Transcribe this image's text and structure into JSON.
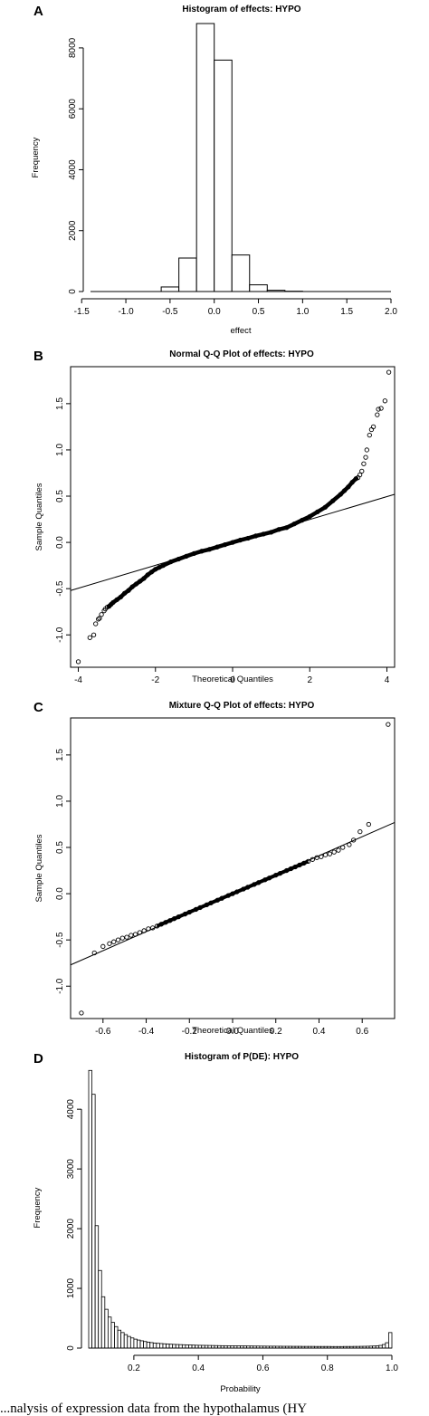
{
  "panels": [
    {
      "letter": "A",
      "title": "Histogram of effects: HYPO"
    },
    {
      "letter": "B",
      "title": "Normal Q-Q Plot of effects: HYPO"
    },
    {
      "letter": "C",
      "title": "Mixture Q-Q Plot of effects: HYPO"
    },
    {
      "letter": "D",
      "title": "Histogram of P(DE): HYPO"
    }
  ],
  "caption": "...nalysis of expression data from the hypothalamus (HY",
  "chart_data": [
    {
      "type": "bar",
      "title": "Histogram of effects: HYPO",
      "xlabel": "effect",
      "ylabel": "Frequency",
      "bins": [
        [
          -0.6,
          -0.4
        ],
        [
          -0.4,
          -0.2
        ],
        [
          -0.2,
          0.0
        ],
        [
          0.0,
          0.2
        ],
        [
          0.2,
          0.4
        ],
        [
          0.4,
          0.6
        ],
        [
          0.6,
          0.8
        ],
        [
          0.8,
          1.0
        ]
      ],
      "values": [
        150,
        1100,
        8800,
        7600,
        1200,
        220,
        40,
        10
      ],
      "xlim": [
        -1.4,
        2.0
      ],
      "ylim": [
        0,
        8800
      ],
      "xticks": [
        "-1.5",
        "-1.0",
        "-0.5",
        "0.0",
        "0.5",
        "1.0",
        "1.5",
        "2.0"
      ],
      "yticks": [
        "0",
        "2000",
        "4000",
        "6000",
        "8000"
      ]
    },
    {
      "type": "scatter",
      "title": "Normal Q-Q Plot of effects: HYPO",
      "xlabel": "Theoretical Quantiles",
      "ylabel": "Sample Quantiles",
      "xlim": [
        -4.2,
        4.2
      ],
      "ylim": [
        -1.35,
        1.9
      ],
      "xticks": [
        "-4",
        "-2",
        "0",
        "2",
        "4"
      ],
      "yticks": [
        "-1.0",
        "-0.5",
        "0.0",
        "0.5",
        "1.0",
        "1.5"
      ],
      "reference_line": [
        [
          -4.2,
          -0.52
        ],
        [
          4.2,
          0.52
        ]
      ],
      "points": [
        [
          -4.0,
          -1.29
        ],
        [
          -3.7,
          -1.03
        ],
        [
          -3.6,
          -1.0
        ],
        [
          -3.55,
          -0.88
        ],
        [
          -3.48,
          -0.83
        ],
        [
          -3.45,
          -0.82
        ],
        [
          -3.4,
          -0.78
        ],
        [
          -3.33,
          -0.74
        ],
        [
          -3.3,
          -0.72
        ],
        [
          -3.25,
          -0.7
        ],
        [
          -3.2,
          -0.69
        ],
        [
          -3.15,
          -0.67
        ],
        [
          -3.1,
          -0.65
        ],
        [
          -3.0,
          -0.62
        ],
        [
          -2.9,
          -0.59
        ],
        [
          -2.8,
          -0.55
        ],
        [
          -2.7,
          -0.52
        ],
        [
          -2.6,
          -0.48
        ],
        [
          -2.5,
          -0.45
        ],
        [
          -2.4,
          -0.42
        ],
        [
          -2.3,
          -0.39
        ],
        [
          -2.2,
          -0.35
        ],
        [
          -2.1,
          -0.32
        ],
        [
          -2.0,
          -0.29
        ],
        [
          -1.9,
          -0.27
        ],
        [
          -1.8,
          -0.25
        ],
        [
          -1.6,
          -0.21
        ],
        [
          -1.4,
          -0.18
        ],
        [
          -1.2,
          -0.15
        ],
        [
          -1.0,
          -0.12
        ],
        [
          -0.8,
          -0.095
        ],
        [
          -0.6,
          -0.075
        ],
        [
          -0.4,
          -0.05
        ],
        [
          -0.2,
          -0.025
        ],
        [
          0.0,
          0.0
        ],
        [
          0.2,
          0.025
        ],
        [
          0.4,
          0.045
        ],
        [
          0.6,
          0.07
        ],
        [
          0.8,
          0.09
        ],
        [
          1.0,
          0.11
        ],
        [
          1.2,
          0.14
        ],
        [
          1.4,
          0.16
        ],
        [
          1.6,
          0.2
        ],
        [
          1.8,
          0.24
        ],
        [
          2.0,
          0.28
        ],
        [
          2.2,
          0.33
        ],
        [
          2.4,
          0.38
        ],
        [
          2.6,
          0.45
        ],
        [
          2.8,
          0.52
        ],
        [
          2.9,
          0.56
        ],
        [
          3.0,
          0.6
        ],
        [
          3.1,
          0.65
        ],
        [
          3.2,
          0.69
        ],
        [
          3.25,
          0.7
        ],
        [
          3.3,
          0.73
        ],
        [
          3.35,
          0.77
        ],
        [
          3.4,
          0.85
        ],
        [
          3.45,
          0.92
        ],
        [
          3.48,
          1.0
        ],
        [
          3.55,
          1.16
        ],
        [
          3.6,
          1.22
        ],
        [
          3.65,
          1.25
        ],
        [
          3.75,
          1.38
        ],
        [
          3.78,
          1.44
        ],
        [
          3.85,
          1.45
        ],
        [
          3.95,
          1.53
        ],
        [
          4.05,
          1.84
        ]
      ]
    },
    {
      "type": "scatter",
      "title": "Mixture Q-Q Plot of effects: HYPO",
      "xlabel": "Theoretical Quantiles",
      "ylabel": "Sample Quantiles",
      "xlim": [
        -0.75,
        0.75
      ],
      "ylim": [
        -1.35,
        1.9
      ],
      "xticks": [
        "-0.6",
        "-0.4",
        "-0.2",
        "0.0",
        "0.2",
        "0.4",
        "0.6"
      ],
      "yticks": [
        "-1.0",
        "-0.5",
        "0.0",
        "0.5",
        "1.0",
        "1.5"
      ],
      "reference_line": [
        [
          -0.75,
          -0.77
        ],
        [
          0.75,
          0.77
        ]
      ],
      "points": [
        [
          -0.7,
          -1.29
        ],
        [
          -0.64,
          -0.64
        ],
        [
          -0.6,
          -0.57
        ],
        [
          -0.57,
          -0.54
        ],
        [
          -0.55,
          -0.52
        ],
        [
          -0.53,
          -0.5
        ],
        [
          -0.51,
          -0.48
        ],
        [
          -0.49,
          -0.47
        ],
        [
          -0.47,
          -0.45
        ],
        [
          -0.45,
          -0.44
        ],
        [
          -0.43,
          -0.42
        ],
        [
          -0.41,
          -0.4
        ],
        [
          -0.39,
          -0.38
        ],
        [
          -0.37,
          -0.37
        ],
        [
          -0.35,
          -0.35
        ],
        [
          -0.33,
          -0.33
        ],
        [
          -0.31,
          -0.31
        ],
        [
          -0.29,
          -0.29
        ],
        [
          -0.27,
          -0.27
        ],
        [
          -0.25,
          -0.25
        ],
        [
          -0.22,
          -0.22
        ],
        [
          -0.2,
          -0.2
        ],
        [
          -0.17,
          -0.17
        ],
        [
          -0.15,
          -0.15
        ],
        [
          -0.12,
          -0.12
        ],
        [
          -0.1,
          -0.1
        ],
        [
          -0.07,
          -0.07
        ],
        [
          -0.05,
          -0.05
        ],
        [
          -0.02,
          -0.02
        ],
        [
          0.0,
          0.0
        ],
        [
          0.02,
          0.02
        ],
        [
          0.05,
          0.05
        ],
        [
          0.07,
          0.07
        ],
        [
          0.1,
          0.1
        ],
        [
          0.12,
          0.12
        ],
        [
          0.15,
          0.15
        ],
        [
          0.17,
          0.17
        ],
        [
          0.2,
          0.2
        ],
        [
          0.22,
          0.22
        ],
        [
          0.25,
          0.25
        ],
        [
          0.27,
          0.27
        ],
        [
          0.29,
          0.29
        ],
        [
          0.31,
          0.31
        ],
        [
          0.33,
          0.33
        ],
        [
          0.35,
          0.35
        ],
        [
          0.37,
          0.37
        ],
        [
          0.39,
          0.39
        ],
        [
          0.41,
          0.4
        ],
        [
          0.43,
          0.42
        ],
        [
          0.45,
          0.43
        ],
        [
          0.47,
          0.45
        ],
        [
          0.49,
          0.47
        ],
        [
          0.51,
          0.5
        ],
        [
          0.54,
          0.53
        ],
        [
          0.56,
          0.58
        ],
        [
          0.59,
          0.67
        ],
        [
          0.63,
          0.75
        ],
        [
          0.72,
          1.83
        ]
      ]
    },
    {
      "type": "bar",
      "title": "Histogram of P(DE): HYPO",
      "xlabel": "Probability",
      "ylabel": "Frequency",
      "bin_start": 0.06,
      "bin_width": 0.01,
      "values": [
        4650,
        4250,
        2050,
        1300,
        860,
        650,
        520,
        430,
        360,
        300,
        260,
        225,
        195,
        170,
        150,
        135,
        122,
        110,
        100,
        92,
        85,
        80,
        76,
        72,
        68,
        65,
        62,
        60,
        58,
        56,
        54,
        52,
        50,
        48,
        47,
        46,
        45,
        44,
        43,
        42,
        41,
        40,
        40,
        39,
        38,
        38,
        37,
        36,
        36,
        35,
        35,
        34,
        34,
        33,
        33,
        32,
        32,
        32,
        31,
        31,
        30,
        30,
        30,
        29,
        29,
        29,
        28,
        28,
        28,
        28,
        27,
        27,
        27,
        27,
        27,
        26,
        26,
        26,
        26,
        27,
        27,
        27,
        28,
        28,
        29,
        30,
        31,
        33,
        35,
        38,
        45,
        60,
        90,
        260
      ],
      "xlim": [
        0.06,
        1.0
      ],
      "ylim": [
        0,
        4700
      ],
      "xticks": [
        "0.2",
        "0.4",
        "0.6",
        "0.8",
        "1.0"
      ],
      "yticks": [
        "0",
        "1000",
        "2000",
        "3000",
        "4000"
      ]
    }
  ]
}
